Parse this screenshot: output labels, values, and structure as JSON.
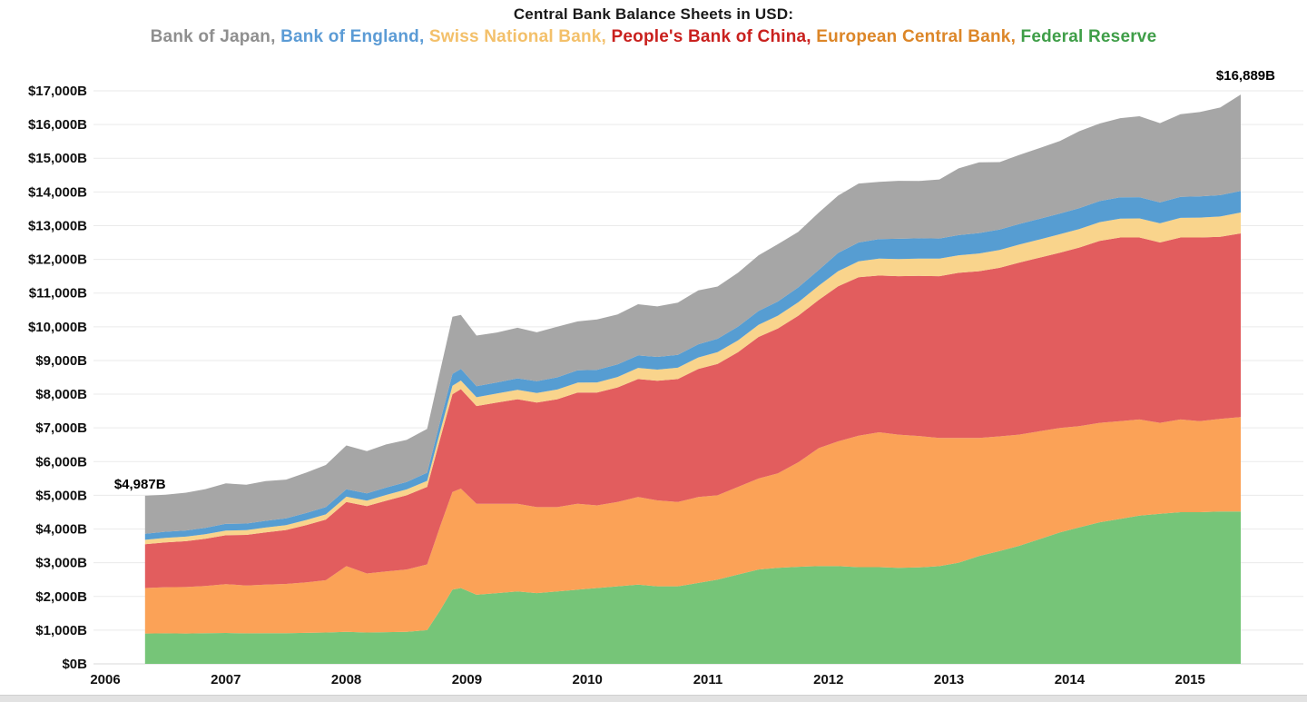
{
  "chart_data": {
    "type": "area",
    "stacked": true,
    "title": "Central Bank Balance Sheets in USD:",
    "legend_position": "top",
    "grid": "horizontal",
    "legend_separator": ", ",
    "legend": [
      {
        "label": "Bank of Japan",
        "color": "#8f8f8f"
      },
      {
        "label": "Bank of England",
        "color": "#5b9bd5"
      },
      {
        "label": "Swiss National Bank",
        "color": "#f3c06a"
      },
      {
        "label": "People's Bank of China",
        "color": "#c9211e"
      },
      {
        "label": "European Central Bank",
        "color": "#dc8628"
      },
      {
        "label": "Federal Reserve",
        "color": "#3f9e48"
      }
    ],
    "annotations": {
      "start": {
        "text": "$4,987B",
        "value": 4987
      },
      "end": {
        "text": "$16,889B",
        "value": 16889
      }
    },
    "ylim": [
      0,
      17000
    ],
    "y_ticks": [
      "$0B",
      "$1,000B",
      "$2,000B",
      "$3,000B",
      "$4,000B",
      "$5,000B",
      "$6,000B",
      "$7,000B",
      "$8,000B",
      "$9,000B",
      "$10,000B",
      "$11,000B",
      "$12,000B",
      "$13,000B",
      "$14,000B",
      "$15,000B",
      "$16,000B",
      "$17,000B"
    ],
    "x_ticks": [
      "2006",
      "2007",
      "2008",
      "2009",
      "2010",
      "2011",
      "2012",
      "2013",
      "2014",
      "2015"
    ],
    "x": [
      2006.33,
      2006.5,
      2006.67,
      2006.83,
      2007.0,
      2007.17,
      2007.33,
      2007.5,
      2007.67,
      2007.83,
      2008.0,
      2008.17,
      2008.33,
      2008.5,
      2008.67,
      2008.78,
      2008.88,
      2008.95,
      2009.08,
      2009.25,
      2009.42,
      2009.58,
      2009.75,
      2009.92,
      2010.08,
      2010.25,
      2010.42,
      2010.58,
      2010.75,
      2010.92,
      2011.08,
      2011.25,
      2011.42,
      2011.58,
      2011.75,
      2011.92,
      2012.08,
      2012.25,
      2012.42,
      2012.58,
      2012.75,
      2012.92,
      2013.08,
      2013.25,
      2013.42,
      2013.58,
      2013.75,
      2013.92,
      2014.08,
      2014.25,
      2014.42,
      2014.58,
      2014.75,
      2014.92,
      2015.08,
      2015.25,
      2015.42
    ],
    "series": [
      {
        "name": "Federal Reserve",
        "fill": "#76c578",
        "values": [
          900,
          905,
          900,
          910,
          915,
          905,
          910,
          910,
          920,
          930,
          950,
          930,
          940,
          950,
          1000,
          1600,
          2200,
          2250,
          2050,
          2100,
          2150,
          2100,
          2150,
          2200,
          2250,
          2300,
          2350,
          2300,
          2300,
          2400,
          2500,
          2650,
          2800,
          2850,
          2880,
          2900,
          2900,
          2870,
          2870,
          2850,
          2860,
          2900,
          3000,
          3200,
          3350,
          3500,
          3700,
          3900,
          4050,
          4200,
          4300,
          4400,
          4450,
          4500,
          4500,
          4520,
          4520
        ]
      },
      {
        "name": "European Central Bank",
        "fill": "#fba257",
        "values": [
          1350,
          1370,
          1380,
          1400,
          1450,
          1420,
          1440,
          1460,
          1500,
          1550,
          1950,
          1750,
          1800,
          1850,
          1950,
          2500,
          2900,
          2950,
          2700,
          2650,
          2600,
          2550,
          2500,
          2550,
          2450,
          2500,
          2600,
          2550,
          2500,
          2550,
          2500,
          2600,
          2700,
          2800,
          3100,
          3500,
          3700,
          3900,
          4000,
          3950,
          3900,
          3800,
          3700,
          3500,
          3400,
          3300,
          3200,
          3100,
          3000,
          2950,
          2900,
          2850,
          2700,
          2750,
          2700,
          2750,
          2800
        ]
      },
      {
        "name": "People's Bank of China",
        "fill": "#e25d5e",
        "values": [
          1300,
          1330,
          1360,
          1400,
          1450,
          1500,
          1550,
          1600,
          1700,
          1800,
          1900,
          2000,
          2100,
          2200,
          2300,
          2600,
          2900,
          2950,
          2900,
          3000,
          3100,
          3100,
          3200,
          3300,
          3350,
          3400,
          3500,
          3550,
          3650,
          3800,
          3900,
          4000,
          4200,
          4300,
          4350,
          4400,
          4600,
          4700,
          4650,
          4700,
          4750,
          4800,
          4900,
          4950,
          5000,
          5100,
          5150,
          5200,
          5300,
          5400,
          5450,
          5400,
          5350,
          5400,
          5450,
          5400,
          5450
        ]
      },
      {
        "name": "Swiss National Bank",
        "fill": "#f9d48c",
        "values": [
          130,
          132,
          134,
          136,
          140,
          142,
          144,
          146,
          150,
          155,
          160,
          165,
          170,
          175,
          180,
          220,
          250,
          255,
          260,
          270,
          280,
          285,
          290,
          295,
          300,
          310,
          330,
          330,
          335,
          340,
          345,
          350,
          360,
          380,
          400,
          420,
          450,
          470,
          500,
          510,
          515,
          520,
          520,
          525,
          530,
          535,
          540,
          545,
          550,
          555,
          560,
          565,
          570,
          580,
          590,
          600,
          620
        ]
      },
      {
        "name": "Bank of England",
        "fill": "#569dd2",
        "values": [
          180,
          182,
          185,
          188,
          200,
          195,
          198,
          200,
          210,
          215,
          220,
          215,
          218,
          220,
          240,
          300,
          350,
          345,
          330,
          330,
          340,
          350,
          360,
          365,
          370,
          375,
          370,
          375,
          380,
          390,
          400,
          405,
          410,
          420,
          440,
          470,
          540,
          560,
          580,
          600,
          600,
          600,
          600,
          605,
          605,
          610,
          610,
          615,
          620,
          625,
          630,
          630,
          620,
          625,
          630,
          635,
          640
        ]
      },
      {
        "name": "Bank of Japan",
        "fill": "#a6a6a6",
        "values": [
          1127,
          1100,
          1120,
          1150,
          1200,
          1150,
          1180,
          1150,
          1200,
          1250,
          1300,
          1250,
          1280,
          1250,
          1300,
          1500,
          1700,
          1600,
          1500,
          1480,
          1500,
          1450,
          1500,
          1450,
          1500,
          1480,
          1520,
          1500,
          1550,
          1600,
          1550,
          1600,
          1650,
          1700,
          1650,
          1700,
          1700,
          1750,
          1700,
          1720,
          1700,
          1750,
          1980,
          2100,
          2000,
          2050,
          2100,
          2150,
          2280,
          2300,
          2350,
          2400,
          2350,
          2450,
          2500,
          2600,
          2859
        ]
      }
    ]
  }
}
